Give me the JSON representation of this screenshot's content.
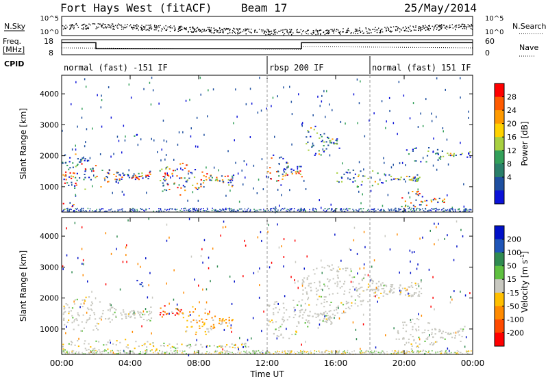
{
  "header": {
    "site": "Fort Hays West (fitACF)",
    "beam": "Beam 17",
    "date": "25/May/2014"
  },
  "top_panels": {
    "nsky_label": "N.Sky",
    "nsky_ticks": [
      "10^5",
      "10^0"
    ],
    "nsearch_label": "N.Search",
    "nsearch_ticks": [
      "10^5",
      "10^0"
    ],
    "freq_label": "Freq.",
    "freq_unit": "[MHz]",
    "freq_ticks": [
      "18",
      "8"
    ],
    "nave_label": "Nave",
    "nave_ticks": [
      "60",
      "0"
    ],
    "cpid_label": "CPID",
    "cpid_segments": [
      {
        "label": "normal (fast) -151 IF",
        "start_hour": 0,
        "end_hour": 12
      },
      {
        "label": "rbsp 200 IF",
        "start_hour": 12,
        "end_hour": 18
      },
      {
        "label": "normal (fast) 151 IF",
        "start_hour": 18,
        "end_hour": 24
      }
    ],
    "freq_steps": [
      {
        "from_hour": 0,
        "to_hour": 2,
        "mhz": 16
      },
      {
        "from_hour": 2,
        "to_hour": 14,
        "mhz": 12
      },
      {
        "from_hour": 14,
        "to_hour": 24,
        "mhz": 16
      }
    ]
  },
  "axes": {
    "ylabel": "Slant Range [km]",
    "y_ticks": [
      "4000",
      "3000",
      "2000",
      "1000"
    ],
    "y_tick_values": [
      4000,
      3000,
      2000,
      1000
    ],
    "ylim": [
      180,
      4600
    ],
    "xlabel": "Time UT",
    "x_ticks": [
      "00:00",
      "04:00",
      "08:00",
      "12:00",
      "16:00",
      "20:00",
      "00:00"
    ],
    "x_tick_hours": [
      0,
      4,
      8,
      12,
      16,
      20,
      24
    ],
    "xlim_hours": [
      0,
      24
    ]
  },
  "colorbars": {
    "power": {
      "label": "Power [dB]",
      "ticks": [
        "28",
        "24",
        "20",
        "16",
        "12",
        "8",
        "4"
      ],
      "colors": [
        "#ff0000",
        "#ff5a00",
        "#ff9a00",
        "#ffd200",
        "#a8d040",
        "#33a05a",
        "#2a7f6a",
        "#1e4fa0",
        "#0b12d8"
      ]
    },
    "velocity": {
      "label": "Velocity [m s^-1]",
      "ticks": [
        "200",
        "100",
        "50",
        "15",
        "-15",
        "-50",
        "-100",
        "-200"
      ],
      "colors": [
        "#0010c8",
        "#1f55b8",
        "#2f8a50",
        "#5fc040",
        "#c8c8c0",
        "#ffbf00",
        "#ff8a00",
        "#ff4a00",
        "#ff0000"
      ]
    }
  },
  "chart_data": [
    {
      "type": "heatmap",
      "title": "Power",
      "xlabel": "Time UT",
      "ylabel": "Slant Range [km]",
      "xlim_hours": [
        0,
        24
      ],
      "ylim": [
        180,
        4600
      ],
      "regions": [
        {
          "t0": 0.0,
          "t1": 1.6,
          "r0": 1550,
          "r1": 2250,
          "level": "mid"
        },
        {
          "t0": 0.0,
          "t1": 5.2,
          "r0": 900,
          "r1": 1800,
          "level": "high"
        },
        {
          "t0": 4.2,
          "t1": 4.7,
          "r0": 2550,
          "r1": 2800,
          "level": "mid"
        },
        {
          "t0": 5.7,
          "t1": 10.0,
          "r0": 700,
          "r1": 1800,
          "level": "high"
        },
        {
          "t0": 12.0,
          "t1": 14.0,
          "r0": 1000,
          "r1": 2100,
          "level": "high"
        },
        {
          "t0": 14.2,
          "t1": 16.2,
          "r0": 1900,
          "r1": 3000,
          "level": "mid"
        },
        {
          "t0": 16.0,
          "t1": 21.0,
          "r0": 1000,
          "r1": 1600,
          "level": "mid"
        },
        {
          "t0": 20.0,
          "t1": 24.0,
          "r0": 1800,
          "r1": 2300,
          "level": "mid"
        },
        {
          "t0": 19.8,
          "t1": 22.5,
          "r0": 250,
          "r1": 900,
          "level": "high"
        },
        {
          "t0": 0.0,
          "t1": 0.7,
          "r0": 250,
          "r1": 550,
          "level": "high"
        }
      ]
    },
    {
      "type": "heatmap",
      "title": "Velocity",
      "xlabel": "Time UT",
      "ylabel": "Slant Range [km]",
      "xlim_hours": [
        0,
        24
      ],
      "ylim": [
        180,
        4600
      ],
      "regions": [
        {
          "t0": 0.0,
          "t1": 5.2,
          "r0": 900,
          "r1": 2100,
          "class": "ground"
        },
        {
          "t0": 4.3,
          "t1": 4.7,
          "r0": 2200,
          "r1": 2750,
          "class": "positive"
        },
        {
          "t0": 5.7,
          "t1": 7.2,
          "r0": 1300,
          "r1": 1900,
          "class": "strong-negative"
        },
        {
          "t0": 7.0,
          "t1": 10.0,
          "r0": 700,
          "r1": 1800,
          "class": "negative"
        },
        {
          "t0": 12.0,
          "t1": 16.0,
          "r0": 700,
          "r1": 2100,
          "class": "ground"
        },
        {
          "t0": 14.0,
          "t1": 21.0,
          "r0": 1500,
          "r1": 3100,
          "class": "ground"
        },
        {
          "t0": 19.5,
          "t1": 23.5,
          "r0": 250,
          "r1": 1400,
          "class": "ground"
        },
        {
          "t0": 0.0,
          "t1": 11.0,
          "r0": 250,
          "r1": 700,
          "class": "ground-mixed"
        }
      ]
    }
  ]
}
